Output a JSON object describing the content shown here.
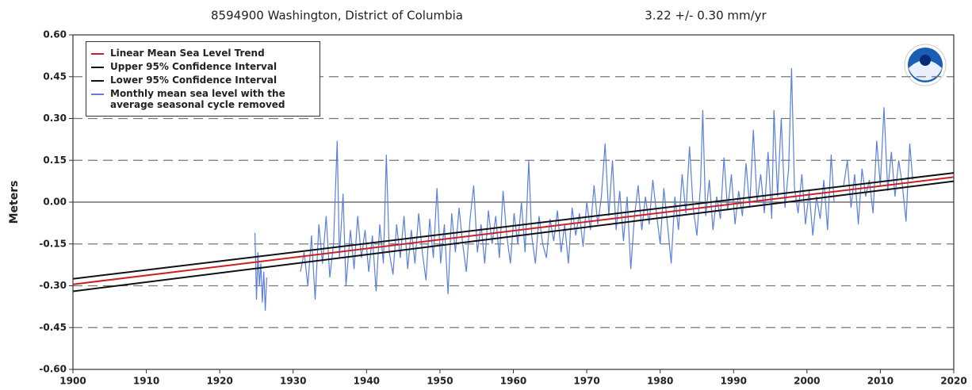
{
  "chart_data": {
    "type": "line",
    "title": "8594900 Washington, District of Columbia",
    "subtitle": "3.22 +/-  0.30 mm/yr",
    "ylabel": "Meters",
    "xlim": [
      1900,
      2020
    ],
    "xticks": [
      1900,
      1910,
      1920,
      1930,
      1940,
      1950,
      1960,
      1970,
      1980,
      1990,
      2000,
      2010,
      2020
    ],
    "ylim": [
      -0.6,
      0.6
    ],
    "yticks": [
      {
        "value": 0.6,
        "label": "0.60"
      },
      0.45,
      {
        "value": 0.3,
        "label": "0.30"
      },
      0.15,
      {
        "value": 0,
        "label": "0.00"
      },
      -0.15,
      {
        "value": -0.3,
        "label": "-0.30"
      },
      -0.45,
      {
        "value": -0.6,
        "label": "-0.60"
      }
    ],
    "grid": true,
    "legend": "upper left",
    "series": [
      {
        "name": "Linear Mean Sea Level Trend",
        "color": "#cc2020",
        "x": [
          1900,
          2020
        ],
        "values": [
          -0.295,
          0.09
        ]
      },
      {
        "name": "Upper 95% Confidence Interval",
        "color": "#111111",
        "x": [
          1900,
          2020
        ],
        "values": [
          -0.275,
          0.105
        ]
      },
      {
        "name": "Lower 95% Confidence Interval",
        "color": "#111111",
        "x": [
          1900,
          2020
        ],
        "values": [
          -0.32,
          0.075
        ]
      },
      {
        "name": "Monthly mean sea level with the average seasonal cycle removed",
        "color": "#5b7fe0",
        "x": [
          1924.8,
          1925.0,
          1925.2,
          1925.4,
          1925.6,
          1925.8,
          1926.0,
          1926.2,
          1926.4,
          1928,
          1931.0,
          1931.5,
          1932.0,
          1932.5,
          1933.0,
          1933.5,
          1934.0,
          1934.5,
          1935.0,
          1935.5,
          1936.0,
          1936.3,
          1936.8,
          1937.2,
          1937.8,
          1938.3,
          1938.8,
          1939.3,
          1939.8,
          1940.3,
          1940.8,
          1941.3,
          1941.8,
          1942.3,
          1942.7,
          1943.1,
          1943.6,
          1944.1,
          1944.6,
          1945.1,
          1945.6,
          1946.1,
          1946.6,
          1947.1,
          1947.6,
          1948.1,
          1948.6,
          1949.1,
          1949.6,
          1950.1,
          1950.6,
          1951.1,
          1951.6,
          1952.1,
          1952.6,
          1953.1,
          1953.6,
          1954.1,
          1954.6,
          1955.1,
          1955.6,
          1956.1,
          1956.6,
          1957.1,
          1957.6,
          1958.1,
          1958.6,
          1959.1,
          1959.6,
          1960.1,
          1960.6,
          1961.1,
          1961.6,
          1962.1,
          1962.5,
          1963.0,
          1963.5,
          1964.0,
          1964.5,
          1965.0,
          1965.5,
          1966.0,
          1966.5,
          1967.0,
          1967.5,
          1968.0,
          1968.5,
          1969.0,
          1969.5,
          1970.0,
          1970.5,
          1971.0,
          1971.5,
          1972.0,
          1972.5,
          1973.0,
          1973.5,
          1974.0,
          1974.5,
          1975.0,
          1975.5,
          1976.0,
          1976.5,
          1977.0,
          1977.5,
          1978.0,
          1978.5,
          1979.0,
          1979.5,
          1980.0,
          1980.5,
          1981.0,
          1981.5,
          1982.0,
          1982.5,
          1983.0,
          1983.5,
          1984.0,
          1984.5,
          1985.0,
          1985.5,
          1985.8,
          1986.2,
          1986.7,
          1987.2,
          1987.7,
          1988.2,
          1988.7,
          1989.2,
          1989.7,
          1990.2,
          1990.7,
          1991.2,
          1991.7,
          1992.2,
          1992.7,
          1993.2,
          1993.7,
          1994.2,
          1994.7,
          1995.2,
          1995.5,
          1996.0,
          1996.5,
          1997.0,
          1997.5,
          1997.9,
          1998.3,
          1998.8,
          1999.3,
          1999.8,
          2000.3,
          2000.8,
          2001.3,
          2001.8,
          2002.3,
          2002.8,
          2003.3,
          2003.7,
          2004.3,
          2005.0,
          2005.5,
          2006.0,
          2006.5,
          2007.0,
          2007.5,
          2008.0,
          2008.5,
          2009.0,
          2009.5,
          2010.0,
          2010.5,
          2011.0,
          2011.5,
          2012.0,
          2012.5,
          2013.0,
          2013.5,
          2014.0,
          2014.4
        ],
        "values": [
          -0.11,
          -0.35,
          -0.18,
          -0.3,
          -0.22,
          -0.36,
          -0.25,
          -0.39,
          -0.27,
          null,
          -0.25,
          -0.18,
          -0.3,
          -0.12,
          -0.35,
          -0.08,
          -0.22,
          -0.05,
          -0.27,
          -0.15,
          0.22,
          -0.2,
          0.03,
          -0.3,
          -0.1,
          -0.24,
          -0.05,
          -0.2,
          -0.1,
          -0.25,
          -0.12,
          -0.32,
          -0.08,
          -0.22,
          0.17,
          -0.18,
          -0.26,
          -0.08,
          -0.2,
          -0.05,
          -0.24,
          -0.1,
          -0.22,
          -0.04,
          -0.18,
          -0.28,
          -0.06,
          -0.2,
          0.05,
          -0.22,
          -0.08,
          -0.33,
          -0.04,
          -0.18,
          -0.02,
          -0.15,
          -0.25,
          -0.06,
          0.06,
          -0.18,
          -0.08,
          -0.22,
          -0.03,
          -0.15,
          -0.05,
          -0.2,
          0.04,
          -0.12,
          -0.22,
          -0.04,
          -0.15,
          0.0,
          -0.18,
          0.15,
          -0.12,
          -0.22,
          -0.05,
          -0.15,
          -0.2,
          -0.06,
          -0.14,
          -0.03,
          -0.18,
          -0.08,
          -0.22,
          -0.02,
          -0.12,
          -0.04,
          -0.16,
          0.0,
          -0.1,
          0.06,
          -0.08,
          0.02,
          0.21,
          -0.05,
          0.15,
          -0.1,
          0.04,
          -0.14,
          0.02,
          -0.24,
          -0.05,
          0.06,
          -0.1,
          0.02,
          -0.08,
          0.08,
          -0.04,
          -0.15,
          0.05,
          -0.08,
          -0.22,
          0.02,
          -0.1,
          0.1,
          -0.04,
          0.2,
          -0.02,
          -0.12,
          0.06,
          0.33,
          -0.05,
          0.08,
          -0.1,
          0.02,
          -0.06,
          0.16,
          -0.03,
          0.1,
          -0.08,
          0.04,
          -0.05,
          0.14,
          -0.02,
          0.26,
          0.0,
          0.1,
          -0.04,
          0.18,
          -0.06,
          0.33,
          0.02,
          0.3,
          -0.02,
          0.12,
          0.48,
          0.05,
          -0.04,
          0.1,
          -0.08,
          0.04,
          -0.12,
          0.02,
          -0.06,
          0.08,
          -0.1,
          0.17,
          0.0,
          null,
          0.06,
          0.15,
          -0.02,
          0.1,
          -0.08,
          0.12,
          0.02,
          0.08,
          -0.04,
          0.22,
          0.06,
          0.34,
          0.04,
          0.18,
          0.02,
          0.15,
          0.06,
          -0.07,
          0.21,
          0.08
        ]
      }
    ]
  }
}
